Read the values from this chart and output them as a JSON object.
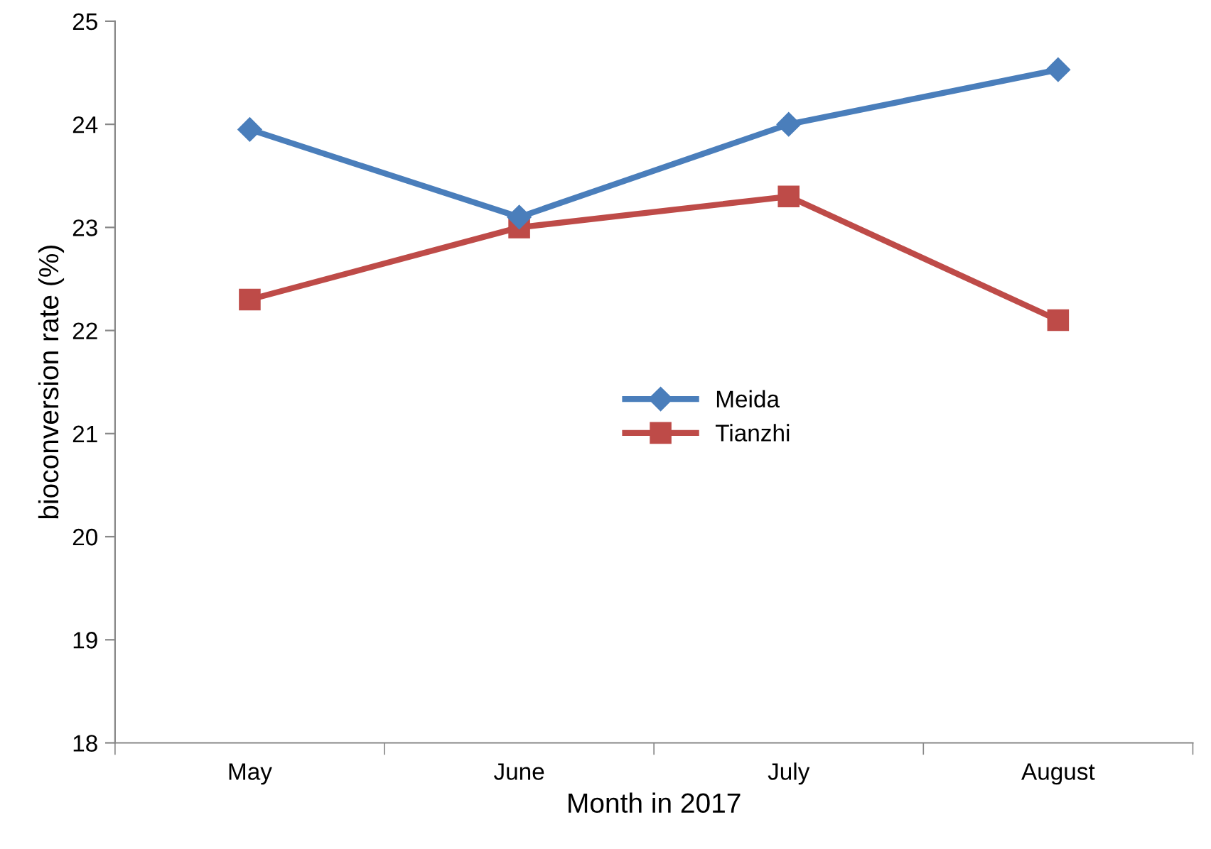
{
  "chart_data": {
    "type": "line",
    "xlabel": "Month in 2017",
    "ylabel": "bioconversion rate (%)",
    "categories": [
      "May",
      "June",
      "July",
      "August"
    ],
    "series": [
      {
        "name": "Meida",
        "color": "#4a7ebb",
        "marker": "diamond",
        "values": [
          23.95,
          23.1,
          24.0,
          24.53
        ]
      },
      {
        "name": "Tianzhi",
        "color": "#be4b48",
        "marker": "square",
        "values": [
          22.3,
          23.0,
          23.3,
          22.1
        ]
      }
    ],
    "ylim": [
      18,
      25
    ],
    "yticks": [
      18,
      19,
      20,
      21,
      22,
      23,
      24,
      25
    ],
    "grid": false,
    "legend": "center",
    "line_style": "solid"
  }
}
